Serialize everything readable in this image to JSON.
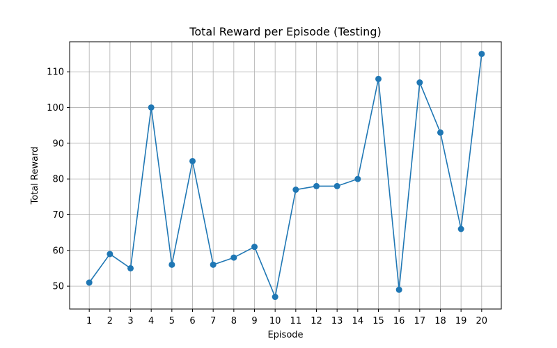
{
  "chart_data": {
    "type": "line",
    "title": "Total Reward per Episode (Testing)",
    "xlabel": "Episode",
    "ylabel": "Total Reward",
    "x": [
      1,
      2,
      3,
      4,
      5,
      6,
      7,
      8,
      9,
      10,
      11,
      12,
      13,
      14,
      15,
      16,
      17,
      18,
      19,
      20
    ],
    "series": [
      {
        "values": [
          51,
          59,
          55,
          100,
          56,
          85,
          56,
          58,
          61,
          47,
          77,
          78,
          78,
          80,
          108,
          49,
          107,
          93,
          66,
          115
        ],
        "color": "#1f77b4",
        "marker": "circle"
      }
    ],
    "xlim": [
      0.05,
      20.95
    ],
    "ylim": [
      43.6,
      118.4
    ],
    "yticks": [
      50,
      60,
      70,
      80,
      90,
      100,
      110
    ],
    "grid": true,
    "legend": "none"
  }
}
